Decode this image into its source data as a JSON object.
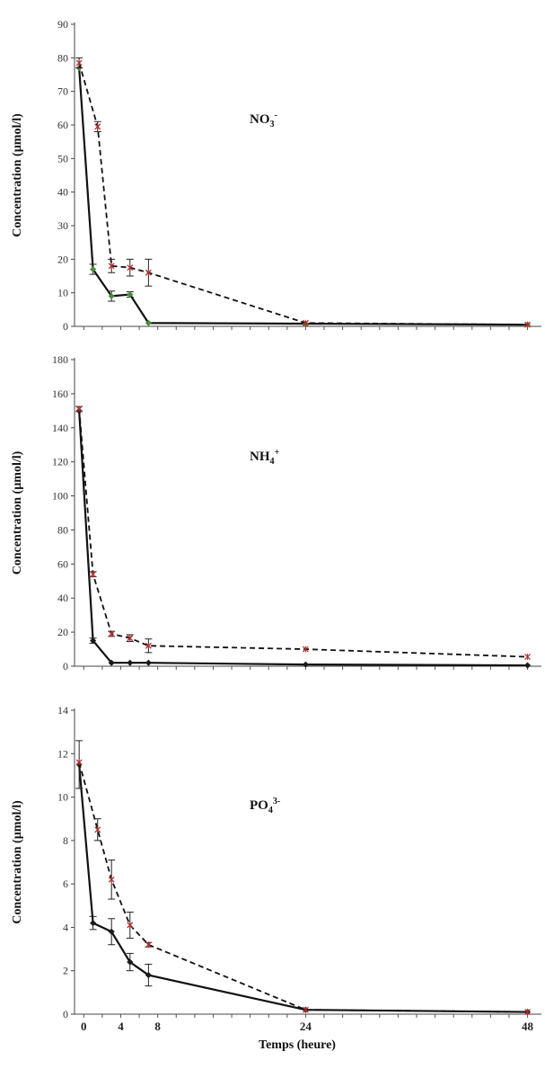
{
  "chart_data": [
    {
      "type": "line",
      "title": "NO3-",
      "title_parts": {
        "base": "NO",
        "sub": "3",
        "sup": "-"
      },
      "ylabel": "Concentration  (µmol/l)",
      "ylim": [
        0,
        90
      ],
      "yticks": [
        0,
        10,
        20,
        30,
        40,
        50,
        60,
        70,
        80,
        90
      ],
      "xlim": [
        -1,
        49.5
      ],
      "series": [
        {
          "style": "solid",
          "color": "#111111",
          "marker_color": "#4a8a3a",
          "x": [
            -0.5,
            1,
            3,
            5,
            7,
            24,
            48
          ],
          "y": [
            77,
            17,
            9,
            9.5,
            1,
            0.8,
            0.5
          ],
          "err": [
            0,
            1.5,
            1.5,
            0.8,
            0,
            0,
            0
          ]
        },
        {
          "style": "dashed",
          "color": "#111111",
          "marker_color": "#b03030",
          "x": [
            -0.5,
            1.5,
            3,
            5,
            7,
            24,
            48
          ],
          "y": [
            78.5,
            59.5,
            18,
            17.5,
            16,
            1,
            0.5
          ],
          "err": [
            1.5,
            1.5,
            2,
            2.5,
            4,
            0,
            0
          ]
        }
      ]
    },
    {
      "type": "line",
      "title": "NH4+",
      "title_parts": {
        "base": "NH",
        "sub": "4",
        "sup": "+"
      },
      "ylabel": "Concentration  (µmol/l)",
      "ylim": [
        0,
        180
      ],
      "yticks": [
        0,
        20,
        40,
        60,
        80,
        100,
        120,
        140,
        160,
        180
      ],
      "xlim": [
        -1,
        49.5
      ],
      "series": [
        {
          "style": "solid",
          "color": "#111111",
          "marker_color": "#1a1a1a",
          "x": [
            -0.5,
            1,
            3,
            5,
            7,
            24,
            48
          ],
          "y": [
            150,
            15,
            2,
            2,
            2,
            1,
            0.5
          ],
          "err": [
            0,
            1.5,
            0,
            0,
            0,
            0,
            0
          ]
        },
        {
          "style": "dashed",
          "color": "#111111",
          "marker_color": "#b03030",
          "x": [
            -0.5,
            1,
            3,
            5,
            7,
            24,
            48
          ],
          "y": [
            151,
            54,
            19,
            16.5,
            12,
            10,
            5.5
          ],
          "err": [
            1.5,
            1.5,
            1.5,
            2,
            4,
            0,
            0
          ]
        }
      ]
    },
    {
      "type": "line",
      "title": "PO43-",
      "title_parts": {
        "base": "PO",
        "sub": "4",
        "sup": "3-"
      },
      "ylabel": "Concentration  (µmol/l)",
      "xlabel": "Temps (heure)",
      "ylim": [
        0,
        14
      ],
      "yticks": [
        0,
        2,
        4,
        6,
        8,
        10,
        12,
        14
      ],
      "xlim": [
        -1,
        49.5
      ],
      "xticks": [
        0,
        4,
        8,
        24,
        48
      ],
      "series": [
        {
          "style": "solid",
          "color": "#111111",
          "marker_color": "#1a1a1a",
          "x": [
            -0.5,
            1,
            3,
            5,
            7,
            24,
            48
          ],
          "y": [
            11.5,
            4.2,
            3.8,
            2.4,
            1.8,
            0.2,
            0.1
          ],
          "err": [
            1.1,
            0.3,
            0.6,
            0.4,
            0.5,
            0,
            0
          ]
        },
        {
          "style": "dashed",
          "color": "#111111",
          "marker_color": "#b03030",
          "x": [
            -0.5,
            1.5,
            3,
            5,
            7,
            24,
            48
          ],
          "y": [
            11.6,
            8.5,
            6.2,
            4.1,
            3.2,
            0.2,
            0.1
          ],
          "err": [
            0,
            0.5,
            0.9,
            0.6,
            0.1,
            0,
            0
          ]
        }
      ]
    }
  ]
}
